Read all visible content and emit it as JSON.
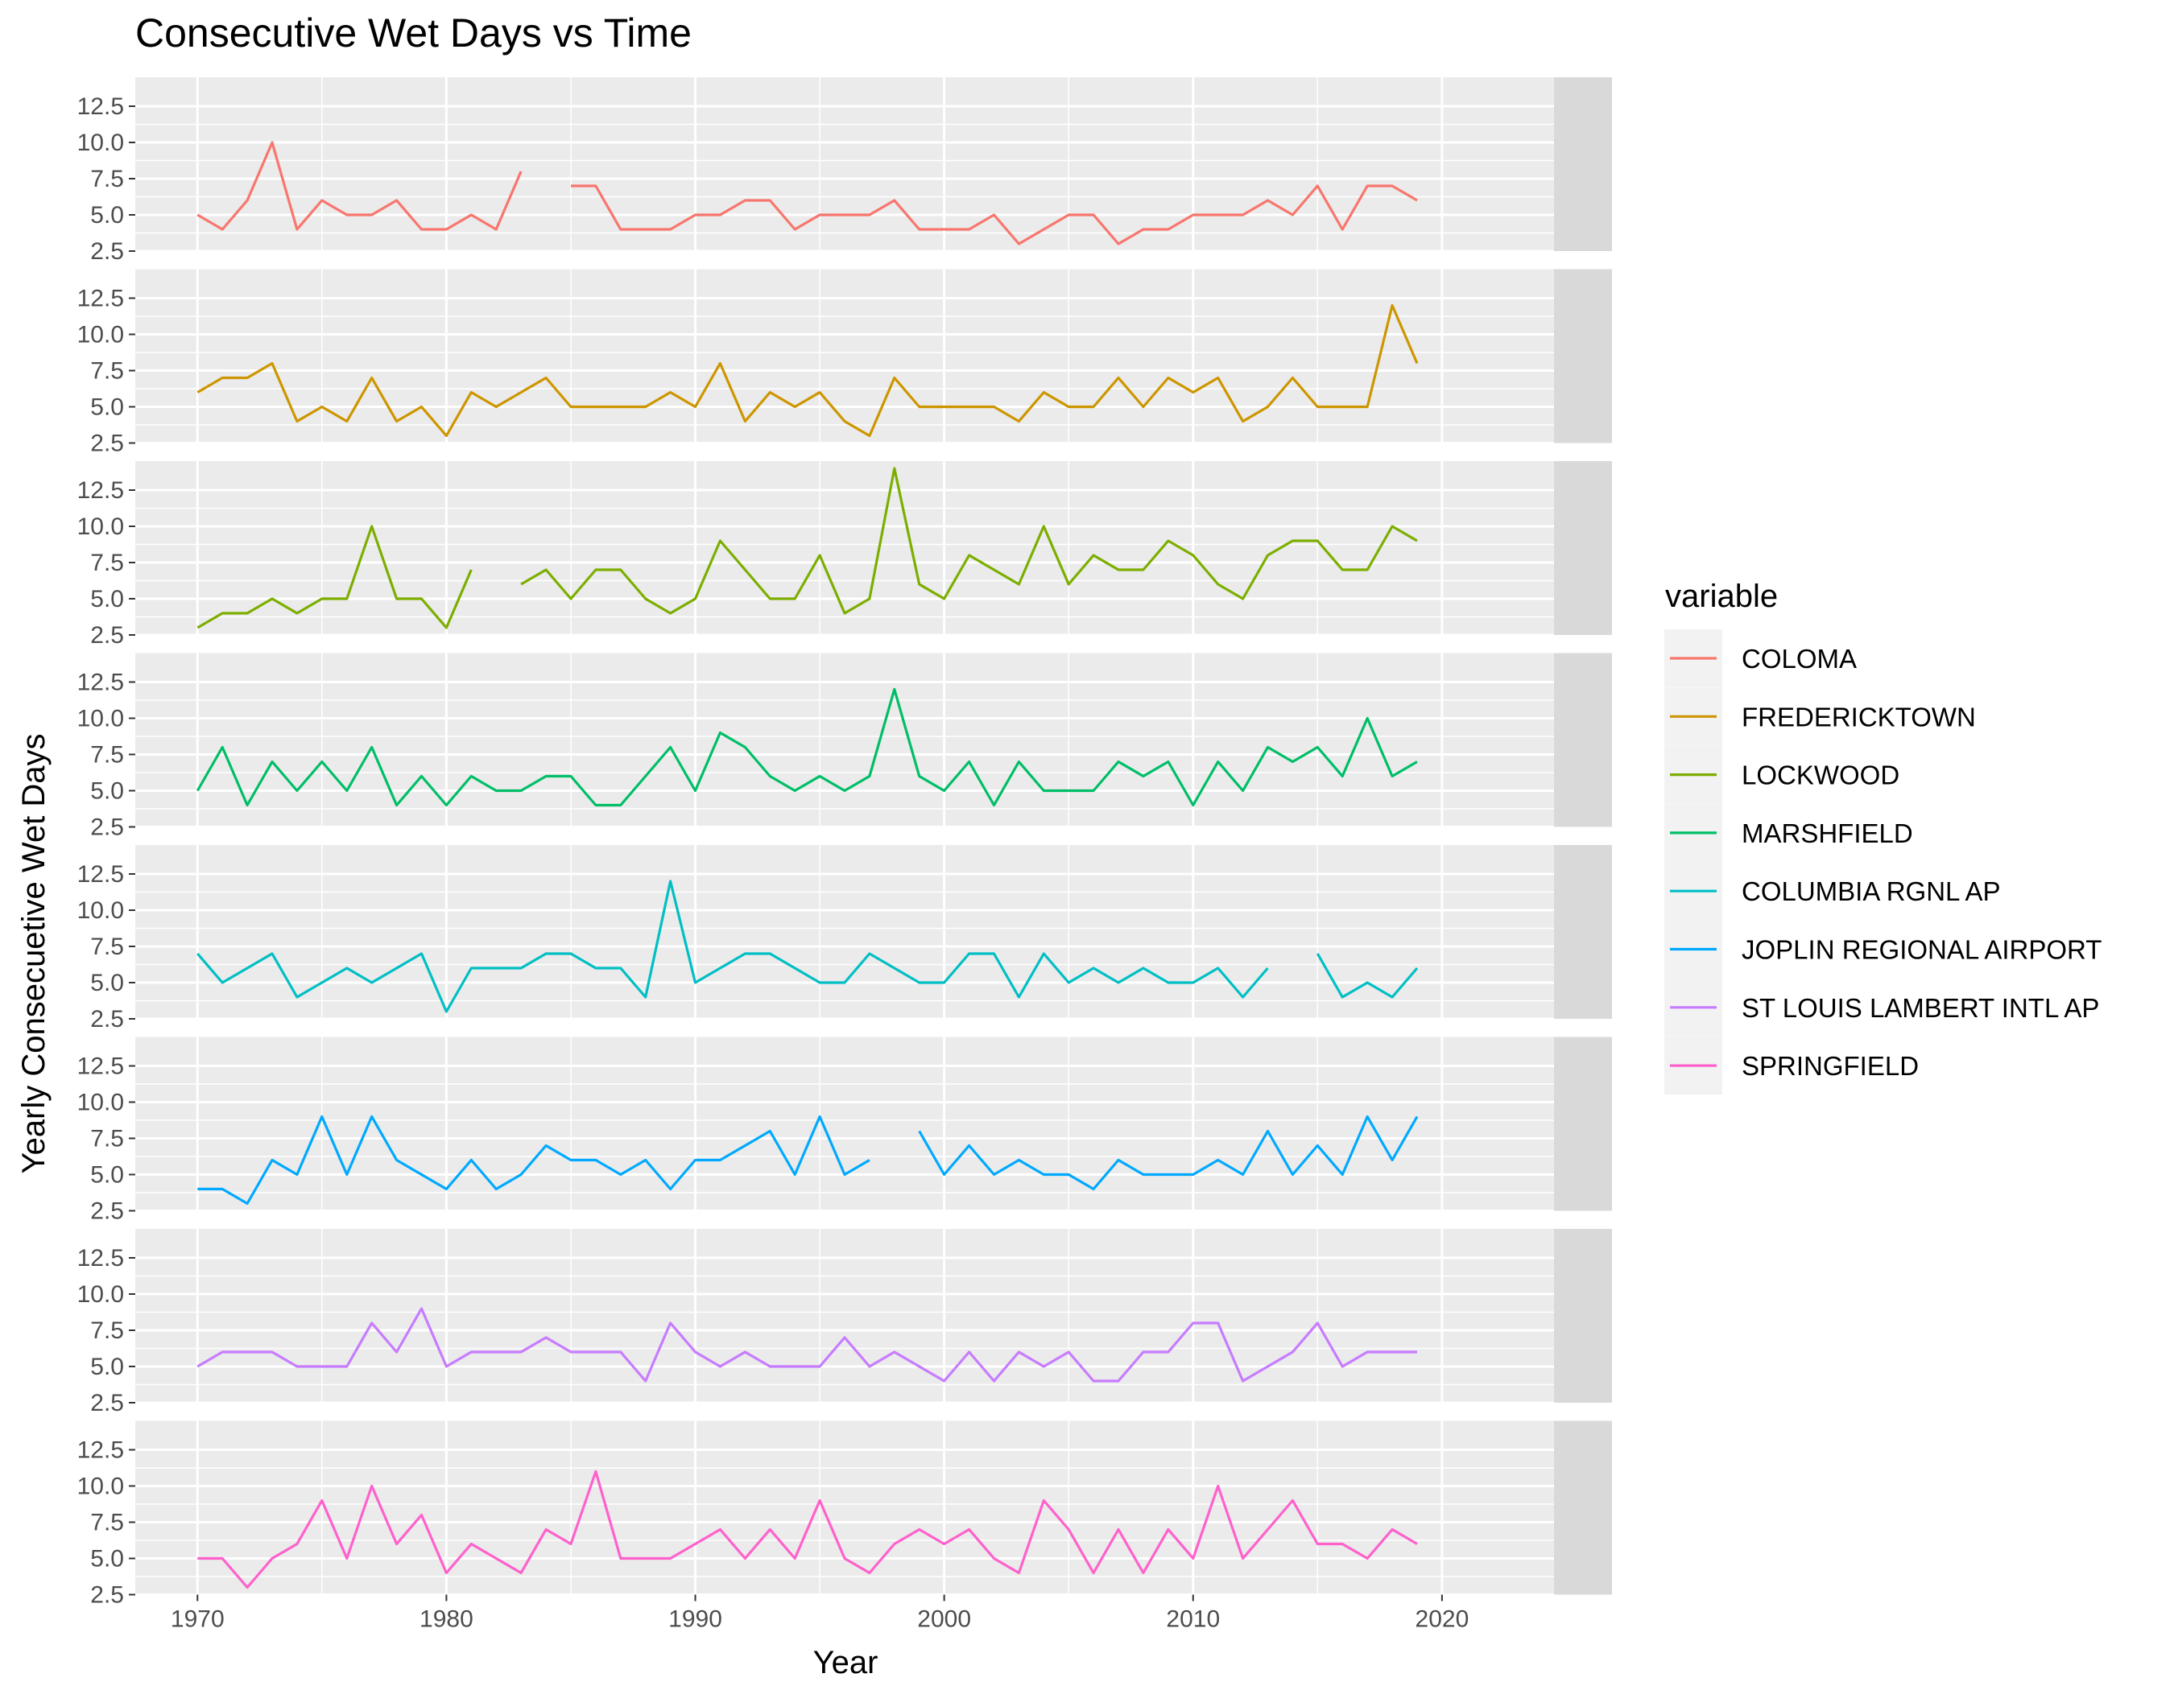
{
  "chart_data": {
    "type": "line",
    "title": "Consecutive Wet Days vs Time",
    "xlabel": "Year",
    "ylabel": "Yearly Consecuetive Wet Days",
    "xlim": [
      1967.5,
      2024.5
    ],
    "ylim": [
      2.5,
      14.5
    ],
    "x_ticks": [
      1970,
      1980,
      1990,
      2000,
      2010,
      2020
    ],
    "x_tick_labels": [
      "1970",
      "1980",
      "1990",
      "2000",
      "2010",
      "2020"
    ],
    "y_ticks": [
      2.5,
      5.0,
      7.5,
      10.0,
      12.5
    ],
    "y_tick_labels": [
      "2.5",
      "5.0",
      "7.5",
      "10.0",
      "12.5"
    ],
    "grid": true,
    "facet": "rows",
    "legend": {
      "title": "variable",
      "position": "right"
    },
    "x": [
      1970,
      1971,
      1972,
      1973,
      1974,
      1975,
      1976,
      1977,
      1978,
      1979,
      1980,
      1981,
      1982,
      1983,
      1984,
      1985,
      1986,
      1987,
      1988,
      1989,
      1990,
      1991,
      1992,
      1993,
      1994,
      1995,
      1996,
      1997,
      1998,
      1999,
      2000,
      2001,
      2002,
      2003,
      2004,
      2005,
      2006,
      2007,
      2008,
      2009,
      2010,
      2011,
      2012,
      2013,
      2014,
      2015,
      2016,
      2017,
      2018,
      2019
    ],
    "series": [
      {
        "name": "COLOMA",
        "strip_label": "COLOMA",
        "color": "#F8766D",
        "values": [
          5,
          4,
          6,
          10,
          4,
          6,
          5,
          5,
          6,
          4,
          4,
          5,
          4,
          8,
          null,
          7,
          7,
          4,
          4,
          4,
          5,
          5,
          6,
          6,
          4,
          5,
          5,
          5,
          6,
          4,
          4,
          4,
          5,
          3,
          4,
          5,
          5,
          3,
          4,
          4,
          5,
          5,
          5,
          6,
          5,
          7,
          4,
          7,
          7,
          6
        ]
      },
      {
        "name": "FREDERICKTOWN",
        "strip_label": "FREDERICKTOWN",
        "color": "#CD9600",
        "values": [
          6,
          7,
          7,
          8,
          4,
          5,
          4,
          7,
          4,
          5,
          3,
          6,
          5,
          6,
          7,
          5,
          5,
          5,
          5,
          6,
          5,
          8,
          4,
          6,
          5,
          6,
          4,
          3,
          7,
          5,
          5,
          5,
          5,
          4,
          6,
          5,
          5,
          7,
          5,
          7,
          6,
          7,
          4,
          5,
          7,
          5,
          5,
          5,
          12,
          8
        ]
      },
      {
        "name": "LOCKWOOD",
        "strip_label": "LOCKWOOD",
        "color": "#7CAE00",
        "values": [
          3,
          4,
          4,
          5,
          4,
          5,
          5,
          10,
          5,
          5,
          3,
          7,
          null,
          6,
          7,
          5,
          7,
          7,
          5,
          4,
          5,
          9,
          7,
          5,
          5,
          8,
          4,
          5,
          14,
          6,
          5,
          8,
          7,
          6,
          10,
          6,
          8,
          7,
          7,
          9,
          8,
          6,
          5,
          8,
          9,
          9,
          7,
          7,
          10,
          9
        ]
      },
      {
        "name": "MARSHFIELD",
        "strip_label": "MARSHFIELD",
        "color": "#00BE67",
        "values": [
          5,
          8,
          4,
          7,
          5,
          7,
          5,
          8,
          4,
          6,
          4,
          6,
          5,
          5,
          6,
          6,
          4,
          4,
          6,
          8,
          5,
          9,
          8,
          6,
          5,
          6,
          5,
          6,
          12,
          6,
          5,
          7,
          4,
          7,
          5,
          5,
          5,
          7,
          6,
          7,
          4,
          7,
          5,
          8,
          7,
          8,
          6,
          10,
          6,
          7
        ]
      },
      {
        "name": "COLUMBIA RGNL AP",
        "strip_label": "COLUMBIA RGNL AP",
        "color": "#00BFC4",
        "values": [
          7,
          5,
          6,
          7,
          4,
          5,
          6,
          5,
          6,
          7,
          3,
          6,
          6,
          6,
          7,
          7,
          6,
          6,
          4,
          12,
          5,
          6,
          7,
          7,
          6,
          5,
          5,
          7,
          6,
          5,
          5,
          7,
          7,
          4,
          7,
          5,
          6,
          5,
          6,
          5,
          5,
          6,
          4,
          6,
          null,
          7,
          4,
          5,
          4,
          6
        ]
      },
      {
        "name": "JOPLIN REGIONAL  AIRPORT",
        "strip_label": "JOPLIN REGIONAL  AIRPORT",
        "color": "#00A9FF",
        "values": [
          4,
          4,
          3,
          6,
          5,
          9,
          5,
          9,
          6,
          5,
          4,
          6,
          4,
          5,
          7,
          6,
          6,
          5,
          6,
          4,
          6,
          6,
          7,
          8,
          5,
          9,
          5,
          6,
          null,
          8,
          5,
          7,
          5,
          6,
          5,
          5,
          4,
          6,
          5,
          5,
          5,
          6,
          5,
          8,
          5,
          7,
          5,
          9,
          6,
          9
        ]
      },
      {
        "name": "ST LOUIS LAMBERT INTL AP",
        "strip_label": "ST LOUIS LAMBERT INTL AP",
        "color": "#C77CFF",
        "values": [
          5,
          6,
          6,
          6,
          5,
          5,
          5,
          8,
          6,
          9,
          5,
          6,
          6,
          6,
          7,
          6,
          6,
          6,
          4,
          8,
          6,
          5,
          6,
          5,
          5,
          5,
          7,
          5,
          6,
          5,
          4,
          6,
          4,
          6,
          5,
          6,
          4,
          4,
          6,
          6,
          8,
          8,
          4,
          5,
          6,
          8,
          5,
          6,
          6,
          6
        ]
      },
      {
        "name": "SPRINGFIELD",
        "strip_label": "SPRINGFIELD",
        "color": "#FF61CC",
        "values": [
          5,
          5,
          3,
          5,
          6,
          9,
          5,
          10,
          6,
          8,
          4,
          6,
          5,
          4,
          7,
          6,
          11,
          5,
          5,
          5,
          6,
          7,
          5,
          7,
          5,
          9,
          5,
          4,
          6,
          7,
          6,
          7,
          5,
          4,
          9,
          7,
          4,
          7,
          4,
          7,
          5,
          10,
          5,
          7,
          9,
          6,
          6,
          5,
          7,
          6
        ]
      }
    ]
  }
}
